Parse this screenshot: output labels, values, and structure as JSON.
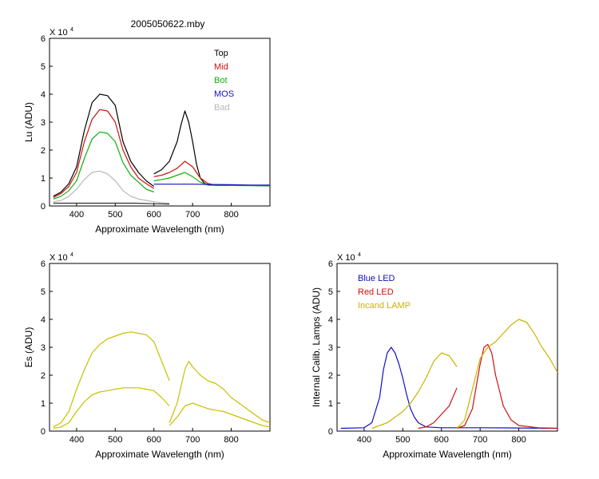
{
  "chart_data": [
    {
      "type": "line",
      "title": "2005050622.mby",
      "xlabel": "Approximate Wavelength (nm)",
      "ylabel": "Lu (ADU)",
      "y_multiplier_label": "X 10",
      "y_multiplier_exp": "4",
      "xlim": [
        330,
        900
      ],
      "ylim": [
        0,
        6
      ],
      "xticks": [
        400,
        500,
        600,
        700,
        800
      ],
      "xtick_labels": [
        "400",
        "500",
        "600",
        "700",
        "800"
      ],
      "yticks": [
        0,
        1,
        2,
        3,
        4,
        5,
        6
      ],
      "ytick_labels": [
        "0",
        "1",
        "2",
        "3",
        "4",
        "5",
        "6"
      ],
      "legend": [
        {
          "label": "Top",
          "color": "#000000"
        },
        {
          "label": "Mid",
          "color": "#d01010"
        },
        {
          "label": "Bot",
          "color": "#10b010"
        },
        {
          "label": "MOS",
          "color": "#1010c0"
        },
        {
          "label": "Bad",
          "color": "#b8b8b8"
        }
      ],
      "series": [
        {
          "name": "Top",
          "color": "#000000",
          "segments": [
            {
              "x": [
                340,
                360,
                380,
                400,
                420,
                440,
                460,
                480,
                500,
                520,
                540,
                560,
                580,
                600
              ],
              "y": [
                0.35,
                0.5,
                0.8,
                1.4,
                2.7,
                3.7,
                4.0,
                3.95,
                3.6,
                2.3,
                1.6,
                1.2,
                0.9,
                0.7
              ]
            },
            {
              "x": [
                600,
                620,
                640,
                660,
                670,
                680,
                690,
                700,
                710,
                720,
                730,
                740,
                760,
                800,
                850,
                900
              ],
              "y": [
                1.15,
                1.3,
                1.6,
                2.3,
                2.9,
                3.4,
                3.0,
                2.3,
                1.5,
                1.0,
                0.82,
                0.75,
                0.74,
                0.73,
                0.73,
                0.72
              ]
            }
          ]
        },
        {
          "name": "Mid",
          "color": "#d01010",
          "segments": [
            {
              "x": [
                340,
                360,
                380,
                400,
                420,
                440,
                460,
                480,
                500,
                520,
                540,
                560,
                580,
                600
              ],
              "y": [
                0.3,
                0.45,
                0.7,
                1.2,
                2.3,
                3.1,
                3.45,
                3.4,
                3.0,
                2.0,
                1.4,
                1.0,
                0.8,
                0.62
              ]
            },
            {
              "x": [
                600,
                620,
                640,
                660,
                680,
                700,
                720,
                740,
                760,
                800,
                900
              ],
              "y": [
                1.05,
                1.1,
                1.2,
                1.35,
                1.6,
                1.4,
                1.0,
                0.8,
                0.75,
                0.74,
                0.73
              ]
            }
          ]
        },
        {
          "name": "Bot",
          "color": "#10b010",
          "segments": [
            {
              "x": [
                340,
                360,
                380,
                400,
                420,
                440,
                460,
                480,
                500,
                520,
                540,
                560,
                580,
                600
              ],
              "y": [
                0.25,
                0.35,
                0.55,
                0.9,
                1.7,
                2.4,
                2.65,
                2.6,
                2.3,
                1.55,
                1.1,
                0.85,
                0.6,
                0.5
              ]
            },
            {
              "x": [
                600,
                620,
                640,
                660,
                680,
                700,
                720,
                740,
                760,
                800,
                900
              ],
              "y": [
                0.9,
                0.95,
                1.0,
                1.1,
                1.2,
                1.05,
                0.85,
                0.76,
                0.74,
                0.73,
                0.72
              ]
            }
          ]
        },
        {
          "name": "MOS",
          "color": "#1010c0",
          "segments": [
            {
              "x": [
                600,
                650,
                700,
                750,
                800,
                850,
                900
              ],
              "y": [
                0.78,
                0.78,
                0.78,
                0.77,
                0.76,
                0.75,
                0.75
              ]
            }
          ]
        },
        {
          "name": "Bad",
          "color": "#b8b8b8",
          "segments": [
            {
              "x": [
                340,
                360,
                380,
                400,
                420,
                440,
                460,
                480,
                500,
                520,
                540,
                560,
                580,
                600,
                620,
                640
              ],
              "y": [
                0.15,
                0.2,
                0.35,
                0.6,
                0.95,
                1.2,
                1.25,
                1.15,
                0.9,
                0.55,
                0.35,
                0.25,
                0.2,
                0.15,
                0.12,
                0.1
              ]
            }
          ]
        },
        {
          "name": "",
          "color": "#333333",
          "segments": [
            {
              "x": [
                340,
                400,
                450,
                500,
                550,
                600,
                640
              ],
              "y": [
                0.1,
                0.1,
                0.1,
                0.1,
                0.1,
                0.08,
                0.07
              ]
            }
          ]
        }
      ]
    },
    {
      "type": "line",
      "title": "",
      "xlabel": "Approximate Wavelength (nm)",
      "ylabel": "Es (ADU)",
      "y_multiplier_label": "X 10",
      "y_multiplier_exp": "4",
      "xlim": [
        330,
        900
      ],
      "ylim": [
        0,
        6
      ],
      "xticks": [
        400,
        500,
        600,
        700,
        800
      ],
      "xtick_labels": [
        "400",
        "500",
        "600",
        "700",
        "800"
      ],
      "yticks": [
        0,
        1,
        2,
        3,
        4,
        5,
        6
      ],
      "ytick_labels": [
        "0",
        "1",
        "2",
        "3",
        "4",
        "5",
        "6"
      ],
      "legend": [],
      "series": [
        {
          "name": "",
          "color": "#c8c000",
          "segments": [
            {
              "x": [
                340,
                360,
                380,
                400,
                420,
                440,
                460,
                480,
                500,
                520,
                540,
                560,
                580,
                600,
                620,
                640
              ],
              "y": [
                0.15,
                0.3,
                0.7,
                1.5,
                2.2,
                2.8,
                3.1,
                3.3,
                3.4,
                3.5,
                3.55,
                3.5,
                3.45,
                3.2,
                2.5,
                1.8
              ]
            },
            {
              "x": [
                340,
                360,
                380,
                400,
                420,
                440,
                460,
                480,
                500,
                520,
                540,
                560,
                580,
                600,
                620,
                640
              ],
              "y": [
                0.1,
                0.15,
                0.3,
                0.7,
                1.05,
                1.3,
                1.4,
                1.45,
                1.5,
                1.55,
                1.55,
                1.55,
                1.5,
                1.45,
                1.2,
                0.9
              ]
            },
            {
              "x": [
                640,
                660,
                680,
                690,
                700,
                720,
                740,
                760,
                780,
                800,
                820,
                840,
                860,
                880,
                900
              ],
              "y": [
                0.3,
                1.0,
                2.2,
                2.5,
                2.3,
                2.0,
                1.8,
                1.7,
                1.5,
                1.2,
                1.0,
                0.8,
                0.6,
                0.4,
                0.3
              ]
            },
            {
              "x": [
                640,
                660,
                680,
                700,
                720,
                740,
                760,
                780,
                800,
                820,
                840,
                860,
                880,
                900
              ],
              "y": [
                0.2,
                0.5,
                0.9,
                1.0,
                0.9,
                0.8,
                0.75,
                0.7,
                0.6,
                0.5,
                0.4,
                0.3,
                0.2,
                0.15
              ]
            }
          ]
        }
      ]
    },
    {
      "type": "line",
      "title": "",
      "xlabel": "Approximate Wavelength (nm)",
      "ylabel": "Internal Calib. Lamps (ADU)",
      "y_multiplier_label": "X 10",
      "y_multiplier_exp": "4",
      "xlim": [
        330,
        900
      ],
      "ylim": [
        0,
        6
      ],
      "xticks": [
        400,
        500,
        600,
        700,
        800
      ],
      "xtick_labels": [
        "400",
        "500",
        "600",
        "700",
        "800"
      ],
      "yticks": [
        0,
        1,
        2,
        3,
        4,
        5,
        6
      ],
      "ytick_labels": [
        "0",
        "1",
        "2",
        "3",
        "4",
        "5",
        "6"
      ],
      "legend": [
        {
          "label": "Blue LED",
          "color": "#1010c0"
        },
        {
          "label": "Red LED",
          "color": "#d01010"
        },
        {
          "label": "Incand LAMP",
          "color": "#c8b400"
        }
      ],
      "series": [
        {
          "name": "Blue LED",
          "color": "#1010c0",
          "segments": [
            {
              "x": [
                340,
                400,
                420,
                440,
                450,
                460,
                470,
                480,
                490,
                500,
                510,
                520,
                530,
                540,
                560,
                600,
                700,
                800,
                900
              ],
              "y": [
                0.1,
                0.12,
                0.3,
                1.2,
                2.2,
                2.8,
                3.0,
                2.8,
                2.4,
                1.9,
                1.3,
                0.8,
                0.5,
                0.3,
                0.15,
                0.12,
                0.12,
                0.11,
                0.1
              ]
            }
          ]
        },
        {
          "name": "Red LED",
          "color": "#d01010",
          "segments": [
            {
              "x": [
                540,
                560,
                580,
                600,
                620,
                640
              ],
              "y": [
                0.1,
                0.15,
                0.3,
                0.6,
                0.9,
                1.55
              ]
            },
            {
              "x": [
                640,
                660,
                680,
                690,
                700,
                710,
                720,
                730,
                740,
                760,
                780,
                800,
                850,
                900
              ],
              "y": [
                0.1,
                0.2,
                0.8,
                1.6,
                2.4,
                3.0,
                3.1,
                2.8,
                2.0,
                0.9,
                0.4,
                0.2,
                0.12,
                0.1
              ]
            }
          ]
        },
        {
          "name": "Incand LAMP",
          "color": "#c8b400",
          "segments": [
            {
              "x": [
                420,
                440,
                460,
                480,
                500,
                520,
                540,
                560,
                580,
                600,
                620,
                640
              ],
              "y": [
                0.1,
                0.2,
                0.3,
                0.5,
                0.7,
                1.0,
                1.4,
                1.9,
                2.5,
                2.8,
                2.7,
                2.3
              ]
            },
            {
              "x": [
                640,
                660,
                680,
                700,
                720,
                740,
                760,
                780,
                800,
                820,
                840,
                860,
                880,
                900
              ],
              "y": [
                0.1,
                0.4,
                1.5,
                2.6,
                3.0,
                3.2,
                3.5,
                3.8,
                4.0,
                3.9,
                3.5,
                3.0,
                2.6,
                2.1
              ]
            }
          ]
        }
      ]
    }
  ]
}
